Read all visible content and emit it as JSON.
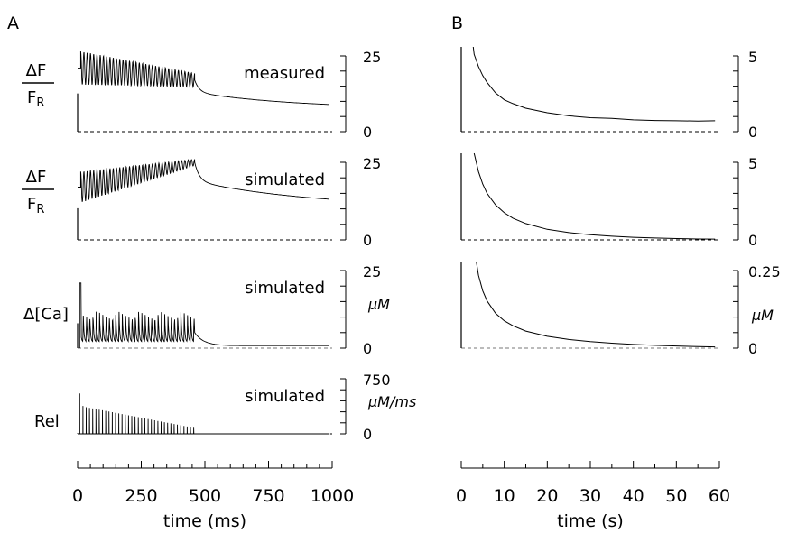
{
  "panel_labels": {
    "a": "A",
    "b": "B"
  },
  "chart_data": [
    {
      "id": "A",
      "type": "line",
      "xlabel": "time (ms)",
      "xlim": [
        0,
        1000
      ],
      "xticks": [
        "0",
        "250",
        "500",
        "750",
        "1000"
      ],
      "rows": [
        {
          "ylabel": "ΔF/F_R",
          "ylabel_top": "ΔF",
          "ylabel_sub_main": "F",
          "ylabel_sub": "R",
          "trace_label": "measured",
          "unit": "",
          "ylim": [
            0,
            25
          ],
          "ytick_labels": [
            "25",
            "0"
          ],
          "series": {
            "name": "measured",
            "osc_start": 21,
            "osc_end": 17,
            "end_base": 26,
            "amp_start": 11,
            "amp_end": 4.5,
            "decay_to": 7.5,
            "decay_tau": 400,
            "tail_start": 13
          }
        },
        {
          "ylabel": "ΔF/F_R",
          "ylabel_top": "ΔF",
          "ylabel_sub_main": "F",
          "ylabel_sub": "R",
          "trace_label": "simulated",
          "unit": "",
          "ylim": [
            0,
            25
          ],
          "ytick_labels": [
            "25",
            "0"
          ],
          "series": {
            "name": "simulated",
            "osc_start": 17,
            "osc_end": 25,
            "amp_start": 10,
            "amp_end": 2,
            "decay_to": 10.5,
            "decay_tau": 450,
            "tail_start": 19
          }
        },
        {
          "ylabel": "Δ[Ca]",
          "trace_label": "simulated",
          "unit": "μM",
          "ylim": [
            0,
            25
          ],
          "ytick_labels": [
            "25",
            "0"
          ],
          "series": {
            "name": "simulated",
            "peak": 12,
            "base": 2,
            "end_peak": 11,
            "decay_to": 0.8
          }
        },
        {
          "ylabel": "Rel",
          "trace_label": "simulated",
          "unit": "μM/ms",
          "ylim": [
            0,
            750
          ],
          "ytick_labels": [
            "750",
            "0"
          ],
          "series": {
            "name": "simulated",
            "first_spike": 550,
            "second_spike": 380,
            "last_spike": 80,
            "spike_count": 40
          }
        }
      ]
    },
    {
      "id": "B",
      "type": "line",
      "xlabel": "time (s)",
      "xlim": [
        0,
        60
      ],
      "xticks": [
        "0",
        "10",
        "20",
        "30",
        "40",
        "50",
        "60"
      ],
      "rows": [
        {
          "ylim": [
            0,
            5
          ],
          "ytick_labels": [
            "5",
            "0"
          ],
          "unit": "",
          "series": {
            "name": "measured",
            "x": [
              2.8,
              3,
              4,
              5,
              6,
              8,
              10,
              12,
              15,
              20,
              25,
              30,
              35,
              40,
              45,
              50,
              55,
              59
            ],
            "y": [
              5.6,
              5.1,
              4.3,
              3.7,
              3.25,
              2.55,
              2.1,
              1.85,
              1.55,
              1.25,
              1.05,
              0.92,
              0.88,
              0.78,
              0.74,
              0.72,
              0.7,
              0.72
            ]
          }
        },
        {
          "ylim": [
            0,
            5
          ],
          "ytick_labels": [
            "5",
            "0"
          ],
          "unit": "",
          "series": {
            "name": "simulated",
            "x": [
              3,
              4,
              5,
              6,
              8,
              10,
              12,
              15,
              20,
              25,
              30,
              35,
              40,
              45,
              50,
              55,
              59
            ],
            "y": [
              5.6,
              4.4,
              3.6,
              3.0,
              2.25,
              1.75,
              1.4,
              1.05,
              0.68,
              0.47,
              0.33,
              0.24,
              0.17,
              0.12,
              0.09,
              0.06,
              0.05
            ]
          }
        },
        {
          "ylim": [
            0,
            0.25
          ],
          "ytick_labels": [
            "0.25",
            "0"
          ],
          "unit": "μM",
          "series": {
            "name": "simulated",
            "x": [
              3.5,
              4,
              5,
              6,
              8,
              10,
              12,
              15,
              20,
              25,
              30,
              35,
              40,
              45,
              50,
              55,
              59
            ],
            "y": [
              0.28,
              0.235,
              0.185,
              0.152,
              0.112,
              0.088,
              0.072,
              0.055,
              0.038,
              0.028,
              0.021,
              0.016,
              0.012,
              0.009,
              0.007,
              0.005,
              0.004
            ]
          }
        }
      ]
    }
  ]
}
